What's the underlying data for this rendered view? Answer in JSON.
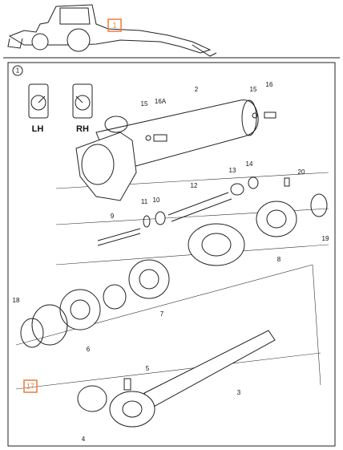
{
  "header": {
    "callout": "1"
  },
  "frame": {
    "label": "1"
  },
  "views": [
    {
      "label": "LH"
    },
    {
      "label": "RH"
    }
  ],
  "parts": [
    "2",
    "15",
    "16A",
    "15",
    "16",
    "13",
    "14",
    "20",
    "12",
    "11",
    "10",
    "9",
    "19",
    "8",
    "18",
    "6",
    "7",
    "17",
    "5",
    "3",
    "4"
  ]
}
